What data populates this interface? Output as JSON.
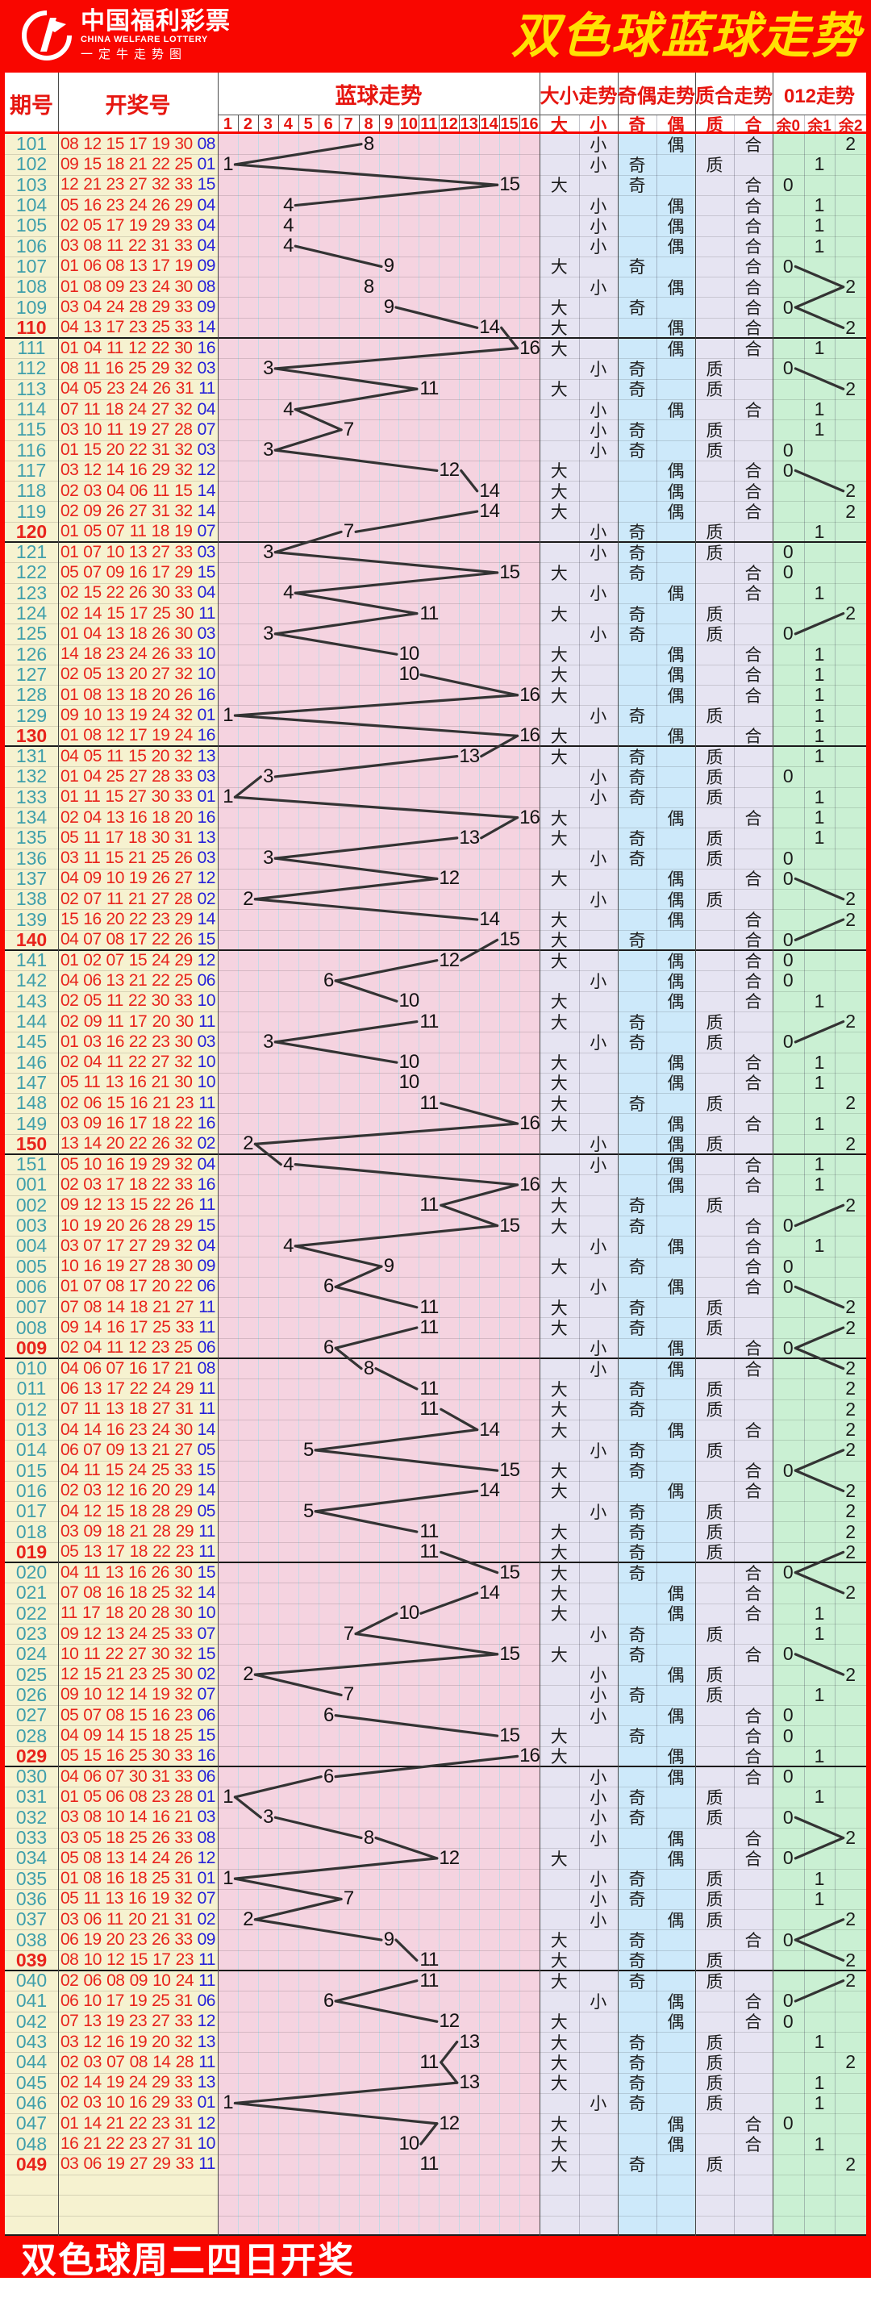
{
  "header": {
    "logo_title": "中国福利彩票",
    "logo_subtitle": "CHINA WELFARE LOTTERY",
    "logo_tagline": "一定牛走势图",
    "title": "双色球蓝球走势"
  },
  "columns": {
    "issue": "期号",
    "numbers": "开奖号",
    "trend": "蓝球走势",
    "big_small": "大小走势",
    "odd_even": "奇偶走势",
    "prime_comp": "质合走势",
    "mod": "012走势",
    "trend_cols": [
      "1",
      "2",
      "3",
      "4",
      "5",
      "6",
      "7",
      "8",
      "9",
      "10",
      "11",
      "12",
      "13",
      "14",
      "15",
      "16"
    ],
    "big": "大",
    "small": "小",
    "odd": "奇",
    "even": "偶",
    "prime": "质",
    "composite": "合",
    "mod_cols": [
      "余0",
      "余1",
      "余2"
    ]
  },
  "footer": {
    "text": "双色球周二四日开奖"
  },
  "palette": {
    "banner_red": "#f90600",
    "title_yellow": "#ffe103",
    "header_text_red": "#e61610",
    "issue_teal": "#3f9fab",
    "issue_highlight_red": "#e8241c",
    "red_ball": "#e8241c",
    "blue_ball": "#2621d8",
    "col_yellow": "#f6f2d0",
    "col_pink": "#f5d3e0",
    "col_lavender": "#e6e4f2",
    "col_blue": "#cde9fa",
    "col_green": "#caf0d3",
    "grid_pink_line": "#c6d8e5",
    "trend_line": "#333333",
    "trend_text": "#141414"
  },
  "chart_data": {
    "type": "table",
    "title": "双色球蓝球走势",
    "trend_range": [
      1,
      16
    ],
    "row_count": 100,
    "rows": [
      {
        "issue": "101",
        "red": "08 12 15 17 19 30",
        "blue": "08"
      },
      {
        "issue": "102",
        "red": "09 15 18 21 22 25",
        "blue": "01"
      },
      {
        "issue": "103",
        "red": "12 21 23 27 32 33",
        "blue": "15"
      },
      {
        "issue": "104",
        "red": "05 16 23 24 26 29",
        "blue": "04"
      },
      {
        "issue": "105",
        "red": "02 05 17 19 29 33",
        "blue": "04"
      },
      {
        "issue": "106",
        "red": "03 08 11 22 31 33",
        "blue": "04"
      },
      {
        "issue": "107",
        "red": "01 06 08 13 17 19",
        "blue": "09"
      },
      {
        "issue": "108",
        "red": "01 08 09 23 24 30",
        "blue": "08"
      },
      {
        "issue": "109",
        "red": "03 04 24 28 29 33",
        "blue": "09"
      },
      {
        "issue": "110",
        "red": "04 13 17 23 25 33",
        "blue": "14"
      },
      {
        "issue": "111",
        "red": "01 04 11 12 22 30",
        "blue": "16"
      },
      {
        "issue": "112",
        "red": "08 11 16 25 29 32",
        "blue": "03"
      },
      {
        "issue": "113",
        "red": "04 05 23 24 26 31",
        "blue": "11"
      },
      {
        "issue": "114",
        "red": "07 11 18 24 27 32",
        "blue": "04"
      },
      {
        "issue": "115",
        "red": "03 10 11 19 27 28",
        "blue": "07"
      },
      {
        "issue": "116",
        "red": "01 15 20 22 31 32",
        "blue": "03"
      },
      {
        "issue": "117",
        "red": "03 12 14 16 29 32",
        "blue": "12"
      },
      {
        "issue": "118",
        "red": "02 03 04 06 11 15",
        "blue": "14"
      },
      {
        "issue": "119",
        "red": "02 09 26 27 31 32",
        "blue": "14"
      },
      {
        "issue": "120",
        "red": "01 05 07 11 18 19",
        "blue": "07"
      },
      {
        "issue": "121",
        "red": "01 07 10 13 27 33",
        "blue": "03"
      },
      {
        "issue": "122",
        "red": "05 07 09 16 17 29",
        "blue": "15"
      },
      {
        "issue": "123",
        "red": "02 15 22 26 30 33",
        "blue": "04"
      },
      {
        "issue": "124",
        "red": "02 14 15 17 25 30",
        "blue": "11"
      },
      {
        "issue": "125",
        "red": "01 04 13 18 26 30",
        "blue": "03"
      },
      {
        "issue": "126",
        "red": "14 18 23 24 26 33",
        "blue": "10"
      },
      {
        "issue": "127",
        "red": "02 05 13 20 27 32",
        "blue": "10"
      },
      {
        "issue": "128",
        "red": "01 08 13 18 20 26",
        "blue": "16"
      },
      {
        "issue": "129",
        "red": "09 10 13 19 24 32",
        "blue": "01"
      },
      {
        "issue": "130",
        "red": "01 08 12 17 19 24",
        "blue": "16"
      },
      {
        "issue": "131",
        "red": "04 05 11 15 20 32",
        "blue": "13"
      },
      {
        "issue": "132",
        "red": "01 04 25 27 28 33",
        "blue": "03"
      },
      {
        "issue": "133",
        "red": "01 11 15 27 30 33",
        "blue": "01"
      },
      {
        "issue": "134",
        "red": "02 04 13 16 18 20",
        "blue": "16"
      },
      {
        "issue": "135",
        "red": "05 11 17 18 30 31",
        "blue": "13"
      },
      {
        "issue": "136",
        "red": "03 11 15 21 25 26",
        "blue": "03"
      },
      {
        "issue": "137",
        "red": "04 09 10 19 26 27",
        "blue": "12"
      },
      {
        "issue": "138",
        "red": "02 07 11 21 27 28",
        "blue": "02"
      },
      {
        "issue": "139",
        "red": "15 16 20 22 23 29",
        "blue": "14"
      },
      {
        "issue": "140",
        "red": "04 07 08 17 22 26",
        "blue": "15"
      },
      {
        "issue": "141",
        "red": "01 02 07 15 24 29",
        "blue": "12"
      },
      {
        "issue": "142",
        "red": "04 06 13 21 22 25",
        "blue": "06"
      },
      {
        "issue": "143",
        "red": "02 05 11 22 30 33",
        "blue": "10"
      },
      {
        "issue": "144",
        "red": "02 09 11 17 20 30",
        "blue": "11"
      },
      {
        "issue": "145",
        "red": "01 03 16 22 23 30",
        "blue": "03"
      },
      {
        "issue": "146",
        "red": "02 04 11 22 27 32",
        "blue": "10"
      },
      {
        "issue": "147",
        "red": "05 11 13 16 21 30",
        "blue": "10"
      },
      {
        "issue": "148",
        "red": "02 06 15 16 21 23",
        "blue": "11"
      },
      {
        "issue": "149",
        "red": "03 09 16 17 18 22",
        "blue": "16"
      },
      {
        "issue": "150",
        "red": "13 14 20 22 26 32",
        "blue": "02"
      },
      {
        "issue": "151",
        "red": "05 10 16 19 29 32",
        "blue": "04"
      },
      {
        "issue": "001",
        "red": "02 03 17 18 22 33",
        "blue": "16"
      },
      {
        "issue": "002",
        "red": "09 12 13 15 22 26",
        "blue": "11"
      },
      {
        "issue": "003",
        "red": "10 19 20 26 28 29",
        "blue": "15"
      },
      {
        "issue": "004",
        "red": "03 07 17 27 29 32",
        "blue": "04"
      },
      {
        "issue": "005",
        "red": "10 16 19 27 28 30",
        "blue": "09"
      },
      {
        "issue": "006",
        "red": "01 07 08 17 20 22",
        "blue": "06"
      },
      {
        "issue": "007",
        "red": "07 08 14 18 21 27",
        "blue": "11"
      },
      {
        "issue": "008",
        "red": "09 14 16 17 25 33",
        "blue": "11"
      },
      {
        "issue": "009",
        "red": "02 04 11 12 23 25",
        "blue": "06"
      },
      {
        "issue": "010",
        "red": "04 06 07 16 17 21",
        "blue": "08"
      },
      {
        "issue": "011",
        "red": "06 13 17 22 24 29",
        "blue": "11"
      },
      {
        "issue": "012",
        "red": "07 11 13 18 27 31",
        "blue": "11"
      },
      {
        "issue": "013",
        "red": "04 14 16 23 24 30",
        "blue": "14"
      },
      {
        "issue": "014",
        "red": "06 07 09 13 21 27",
        "blue": "05"
      },
      {
        "issue": "015",
        "red": "04 11 15 24 25 33",
        "blue": "15"
      },
      {
        "issue": "016",
        "red": "02 03 12 16 20 29",
        "blue": "14"
      },
      {
        "issue": "017",
        "red": "04 12 15 18 28 29",
        "blue": "05"
      },
      {
        "issue": "018",
        "red": "03 09 18 21 28 29",
        "blue": "11"
      },
      {
        "issue": "019",
        "red": "05 13 17 18 22 23",
        "blue": "11"
      },
      {
        "issue": "020",
        "red": "04 11 13 16 26 30",
        "blue": "15"
      },
      {
        "issue": "021",
        "red": "07 08 16 18 25 32",
        "blue": "14"
      },
      {
        "issue": "022",
        "red": "11 17 18 20 28 30",
        "blue": "10"
      },
      {
        "issue": "023",
        "red": "09 12 13 24 25 33",
        "blue": "07"
      },
      {
        "issue": "024",
        "red": "10 11 22 27 30 32",
        "blue": "15"
      },
      {
        "issue": "025",
        "red": "12 15 21 23 25 30",
        "blue": "02"
      },
      {
        "issue": "026",
        "red": "09 10 12 14 19 32",
        "blue": "07"
      },
      {
        "issue": "027",
        "red": "05 07 08 15 16 23",
        "blue": "06"
      },
      {
        "issue": "028",
        "red": "04 09 14 15 18 25",
        "blue": "15"
      },
      {
        "issue": "029",
        "red": "05 15 16 25 30 33",
        "blue": "16"
      },
      {
        "issue": "030",
        "red": "04 06 07 30 31 33",
        "blue": "06"
      },
      {
        "issue": "031",
        "red": "01 05 06 08 23 28",
        "blue": "01"
      },
      {
        "issue": "032",
        "red": "03 08 10 14 16 21",
        "blue": "03"
      },
      {
        "issue": "033",
        "red": "03 05 18 25 26 33",
        "blue": "08"
      },
      {
        "issue": "034",
        "red": "05 08 13 14 24 26",
        "blue": "12"
      },
      {
        "issue": "035",
        "red": "01 08 16 18 25 31",
        "blue": "01"
      },
      {
        "issue": "036",
        "red": "05 11 13 16 19 32",
        "blue": "07"
      },
      {
        "issue": "037",
        "red": "03 06 11 20 21 31",
        "blue": "02"
      },
      {
        "issue": "038",
        "red": "06 19 20 23 26 33",
        "blue": "09"
      },
      {
        "issue": "039",
        "red": "08 10 12 15 17 23",
        "blue": "11"
      },
      {
        "issue": "040",
        "red": "02 06 08 09 10 24",
        "blue": "11"
      },
      {
        "issue": "041",
        "red": "06 10 17 19 25 31",
        "blue": "06"
      },
      {
        "issue": "042",
        "red": "07 13 19 23 27 33",
        "blue": "12"
      },
      {
        "issue": "043",
        "red": "03 12 16 19 20 32",
        "blue": "13"
      },
      {
        "issue": "044",
        "red": "02 03 07 08 14 28",
        "blue": "11"
      },
      {
        "issue": "045",
        "red": "02 14 19 24 29 33",
        "blue": "13"
      },
      {
        "issue": "046",
        "red": "02 03 10 16 29 33",
        "blue": "01"
      },
      {
        "issue": "047",
        "red": "01 14 21 22 23 31",
        "blue": "12"
      },
      {
        "issue": "048",
        "red": "16 21 22 23 27 31",
        "blue": "10"
      },
      {
        "issue": "049",
        "red": "03 06 19 27 29 33",
        "blue": "11"
      }
    ]
  }
}
